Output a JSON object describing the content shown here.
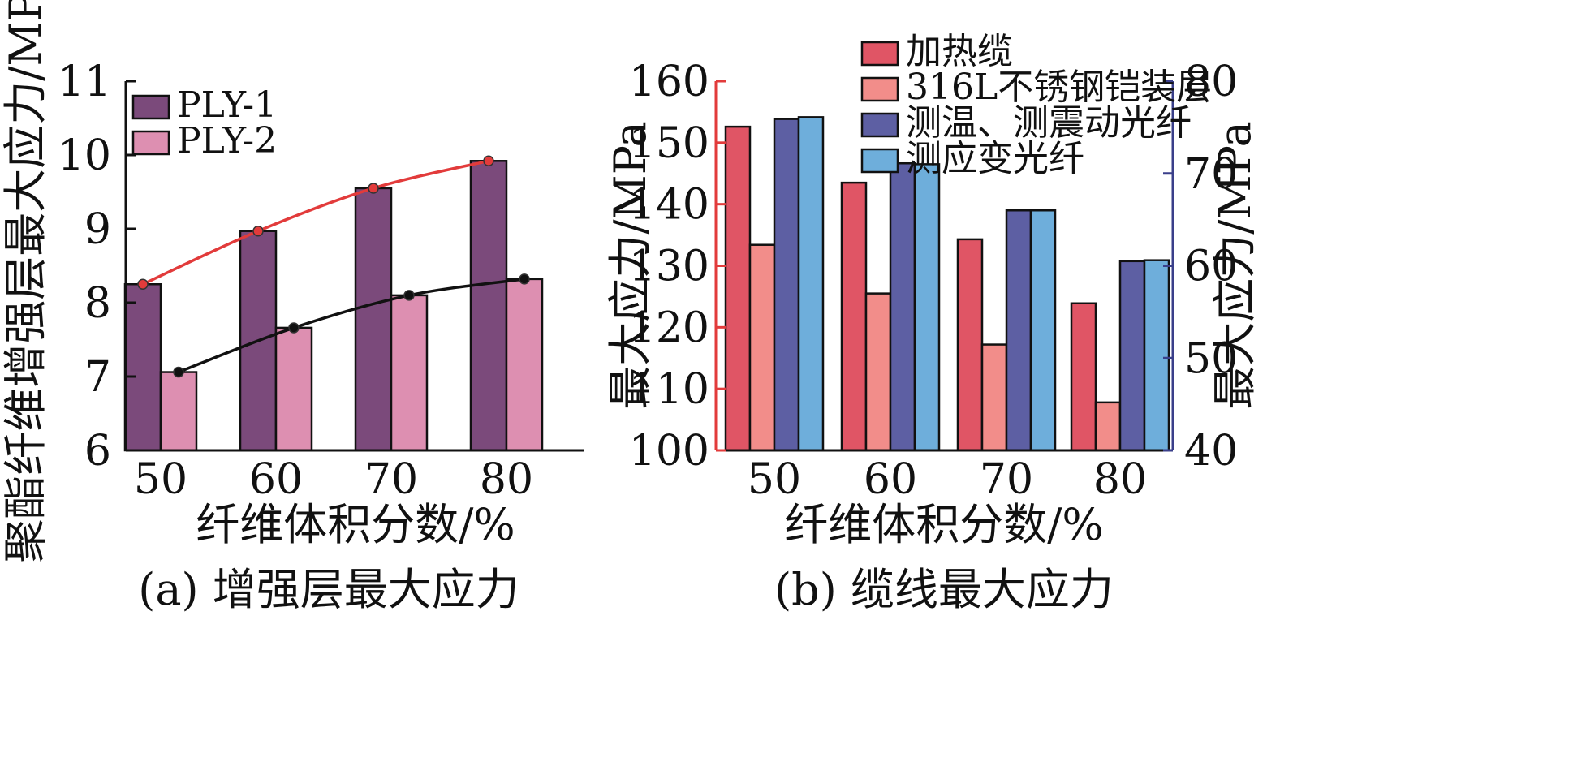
{
  "chart_data": [
    {
      "id": "a",
      "type": "bar",
      "caption": "(a) 增强层最大应力",
      "xlabel": "纤维体积分数/%",
      "ylabel": "聚酯纤维增强层最大应力/MPa",
      "categories": [
        "50",
        "60",
        "70",
        "80"
      ],
      "ylim": [
        6,
        11
      ],
      "yticks": [
        "6",
        "7",
        "8",
        "9",
        "10",
        "11"
      ],
      "legend_position": "top-left",
      "series": [
        {
          "name": "PLY-1",
          "color": "#7b4a7b",
          "values": [
            8.25,
            8.97,
            9.55,
            9.92
          ]
        },
        {
          "name": "PLY-2",
          "color": "#dd8fb1",
          "values": [
            7.06,
            7.66,
            8.1,
            8.32
          ]
        }
      ],
      "trend_lines": [
        {
          "series": "PLY-1",
          "color": "#e23b3b",
          "values": [
            8.25,
            8.97,
            9.55,
            9.92
          ]
        },
        {
          "series": "PLY-2",
          "color": "#111111",
          "values": [
            7.06,
            7.66,
            8.1,
            8.32
          ]
        }
      ]
    },
    {
      "id": "b",
      "type": "bar",
      "caption": "(b) 缆线最大应力",
      "xlabel": "纤维体积分数/%",
      "ylabel_left": "最大应力/MPa",
      "ylabel_right": "最大应力/MPa",
      "categories": [
        "50",
        "60",
        "70",
        "80"
      ],
      "ylim_left": [
        100,
        160
      ],
      "ylim_right": [
        40,
        80
      ],
      "yticks_left": [
        "100",
        "110",
        "120",
        "130",
        "140",
        "150",
        "160"
      ],
      "yticks_right": [
        "40",
        "50",
        "60",
        "70",
        "80"
      ],
      "left_axis_color": "#e23b3b",
      "right_axis_color": "#3a3f8a",
      "legend_position": "top-center",
      "series": [
        {
          "name": "加热缆",
          "axis": "left",
          "color": "#e05565",
          "values": [
            152.6,
            143.5,
            134.3,
            123.9
          ]
        },
        {
          "name": "316L不锈钢铠装层",
          "axis": "left",
          "color": "#f28d8a",
          "values": [
            133.4,
            125.5,
            117.2,
            107.8
          ]
        },
        {
          "name": "测温、测震动光纤",
          "axis": "right",
          "color": "#5d5fa3",
          "values": [
            75.9,
            71.1,
            66.0,
            60.5
          ]
        },
        {
          "name": "测应变光纤",
          "axis": "right",
          "color": "#6eaedb",
          "values": [
            76.1,
            71.0,
            66.0,
            60.6
          ]
        }
      ]
    }
  ]
}
